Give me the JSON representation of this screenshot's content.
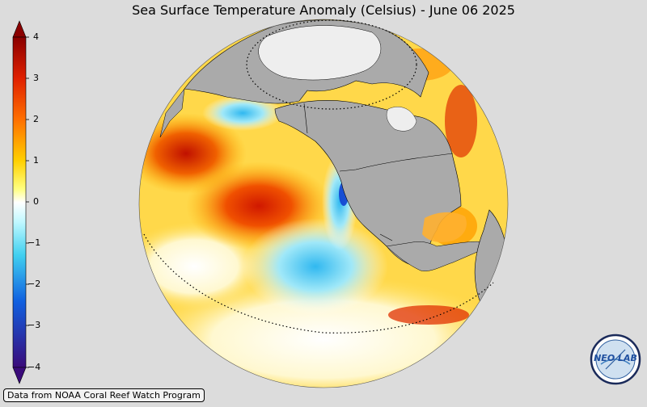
{
  "title": "Sea Surface Temperature Anomaly (Celsius) - June 06 2025",
  "colorbar": {
    "ticks": [
      "4",
      "3",
      "2",
      "1",
      "0",
      "−1",
      "−2",
      "−3",
      "−4"
    ],
    "colors": [
      "#3a0a7a",
      "#1040d0",
      "#20a8f0",
      "#a8f0f8",
      "#ffffff",
      "#ffff40",
      "#ffa000",
      "#e02000",
      "#8a0000"
    ],
    "min": -4,
    "max": 4
  },
  "credit": "Data from NOAA Coral Reef Watch Program",
  "logo": {
    "text": "NEO LAB"
  },
  "map": {
    "ocean_warm": "#ffd84a",
    "land": "#aaaaaa",
    "ice": "#eeeeee"
  }
}
